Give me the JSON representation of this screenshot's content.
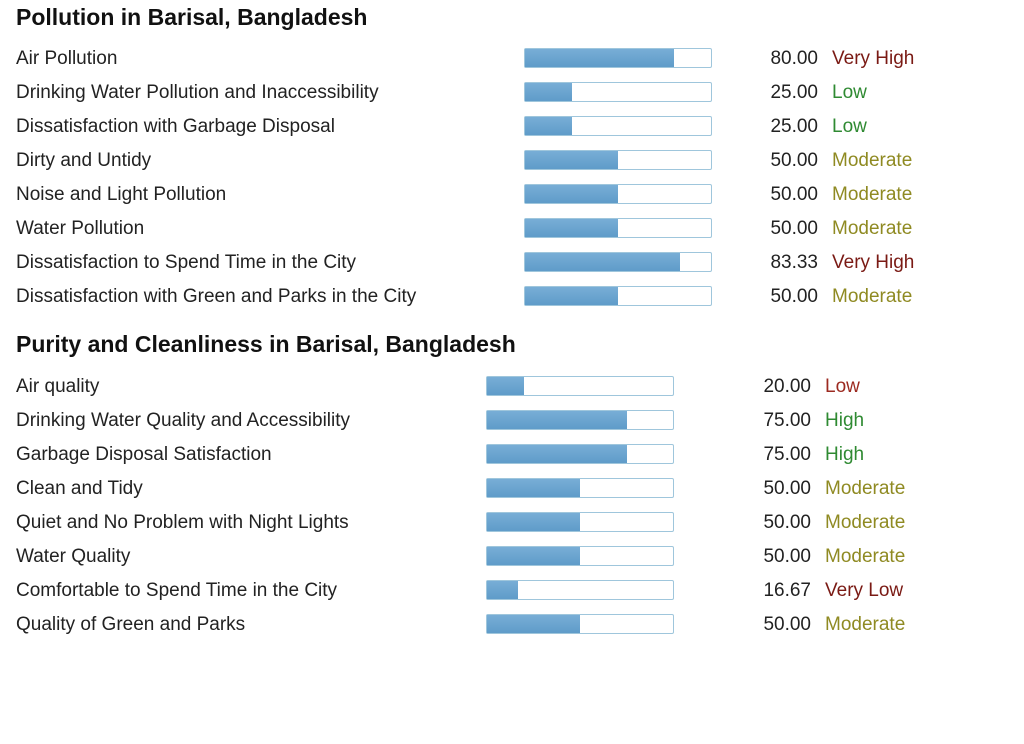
{
  "pollution": {
    "title": "Pollution in Barisal, Bangladesh",
    "rows": [
      {
        "label": "Air Pollution",
        "value": "80.00",
        "level": "Very High",
        "percent": 80.0,
        "level_class": "lvl-very-high"
      },
      {
        "label": "Drinking Water Pollution and Inaccessibility",
        "value": "25.00",
        "level": "Low",
        "percent": 25.0,
        "level_class": "lvl-low-good"
      },
      {
        "label": "Dissatisfaction with Garbage Disposal",
        "value": "25.00",
        "level": "Low",
        "percent": 25.0,
        "level_class": "lvl-low-good"
      },
      {
        "label": "Dirty and Untidy",
        "value": "50.00",
        "level": "Moderate",
        "percent": 50.0,
        "level_class": "lvl-moderate"
      },
      {
        "label": "Noise and Light Pollution",
        "value": "50.00",
        "level": "Moderate",
        "percent": 50.0,
        "level_class": "lvl-moderate"
      },
      {
        "label": "Water Pollution",
        "value": "50.00",
        "level": "Moderate",
        "percent": 50.0,
        "level_class": "lvl-moderate"
      },
      {
        "label": "Dissatisfaction to Spend Time in the City",
        "value": "83.33",
        "level": "Very High",
        "percent": 83.33,
        "level_class": "lvl-very-high"
      },
      {
        "label": "Dissatisfaction with Green and Parks in the City",
        "value": "50.00",
        "level": "Moderate",
        "percent": 50.0,
        "level_class": "lvl-moderate"
      }
    ]
  },
  "purity": {
    "title": "Purity and Cleanliness in Barisal, Bangladesh",
    "rows": [
      {
        "label": "Air quality",
        "value": "20.00",
        "level": "Low",
        "percent": 20.0,
        "level_class": "lvl-low-bad"
      },
      {
        "label": "Drinking Water Quality and Accessibility",
        "value": "75.00",
        "level": "High",
        "percent": 75.0,
        "level_class": "lvl-high"
      },
      {
        "label": "Garbage Disposal Satisfaction",
        "value": "75.00",
        "level": "High",
        "percent": 75.0,
        "level_class": "lvl-high"
      },
      {
        "label": "Clean and Tidy",
        "value": "50.00",
        "level": "Moderate",
        "percent": 50.0,
        "level_class": "lvl-moderate"
      },
      {
        "label": "Quiet and No Problem with Night Lights",
        "value": "50.00",
        "level": "Moderate",
        "percent": 50.0,
        "level_class": "lvl-moderate"
      },
      {
        "label": "Water Quality",
        "value": "50.00",
        "level": "Moderate",
        "percent": 50.0,
        "level_class": "lvl-moderate"
      },
      {
        "label": "Comfortable to Spend Time in the City",
        "value": "16.67",
        "level": "Very Low",
        "percent": 16.67,
        "level_class": "lvl-very-low"
      },
      {
        "label": "Quality of Green and Parks",
        "value": "50.00",
        "level": "Moderate",
        "percent": 50.0,
        "level_class": "lvl-moderate"
      }
    ]
  }
}
